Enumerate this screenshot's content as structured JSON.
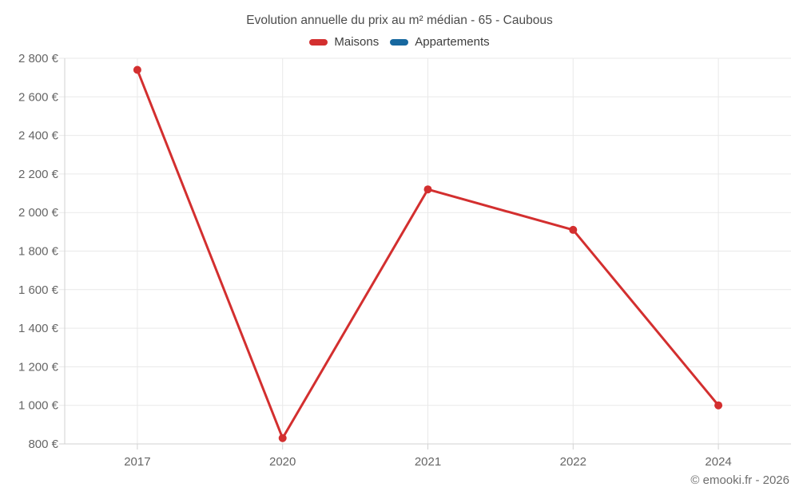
{
  "header": {
    "title": "Evolution annuelle du prix au m² médian - 65 - Caubous"
  },
  "legend": {
    "items": [
      {
        "label": "Maisons",
        "color": "#d32f2f"
      },
      {
        "label": "Appartements",
        "color": "#17689f"
      }
    ]
  },
  "footer": {
    "copyright": "© emooki.fr - 2026"
  },
  "chart_data": {
    "type": "line",
    "title": "Evolution annuelle du prix au m² médian - 65 - Caubous",
    "categories": [
      "2017",
      "2020",
      "2021",
      "2022",
      "2024"
    ],
    "series": [
      {
        "name": "Maisons",
        "color": "#d32f2f",
        "values": [
          2740,
          830,
          2120,
          1910,
          1000
        ]
      },
      {
        "name": "Appartements",
        "color": "#17689f",
        "values": []
      }
    ],
    "xlabel": "",
    "ylabel": "",
    "ylim": [
      800,
      2800
    ],
    "ytick_step": 200,
    "ytick_labels": [
      "800 €",
      "1 000 €",
      "1 200 €",
      "1 400 €",
      "1 600 €",
      "1 800 €",
      "2 000 €",
      "2 200 €",
      "2 400 €",
      "2 600 €",
      "2 800 €"
    ],
    "grid": true,
    "legend_position": "top",
    "colors": {
      "gridline": "#e9e9e9",
      "axis": "#d2d2d2",
      "tick_label": "#666666"
    }
  }
}
